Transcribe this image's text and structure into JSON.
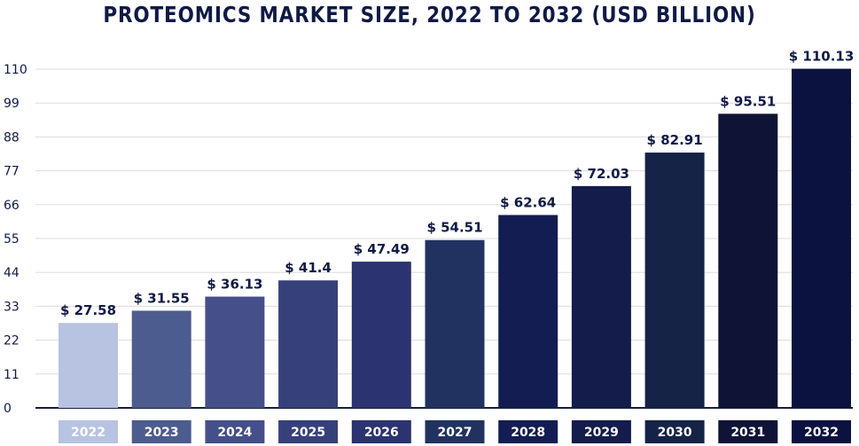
{
  "chart_data": {
    "type": "bar",
    "title": "PROTEOMICS MARKET SIZE, 2022 TO 2032 (USD BILLION)",
    "categories": [
      "2022",
      "2023",
      "2024",
      "2025",
      "2026",
      "2027",
      "2028",
      "2029",
      "2030",
      "2031",
      "2032"
    ],
    "values": [
      27.58,
      31.55,
      36.13,
      41.4,
      47.49,
      54.51,
      62.64,
      72.03,
      82.91,
      95.51,
      110.13
    ],
    "value_labels": [
      "$ 27.58",
      "$ 31.55",
      "$ 36.13",
      "$ 41.4",
      "$ 47.49",
      "$ 54.51",
      "$ 62.64",
      "$ 72.03",
      "$ 82.91",
      "$ 95.51",
      "$ 110.13"
    ],
    "yticks": [
      0,
      11,
      22,
      33,
      44,
      55,
      66,
      77,
      88,
      99,
      110
    ],
    "ylim": [
      0,
      110
    ],
    "grid": true,
    "colors": [
      "#b8c3e2",
      "#4d5c8e",
      "#454f89",
      "#36407a",
      "#2b3370",
      "#223260",
      "#141d52",
      "#131c4a",
      "#142346",
      "#0f1436",
      "#0c1240"
    ]
  }
}
